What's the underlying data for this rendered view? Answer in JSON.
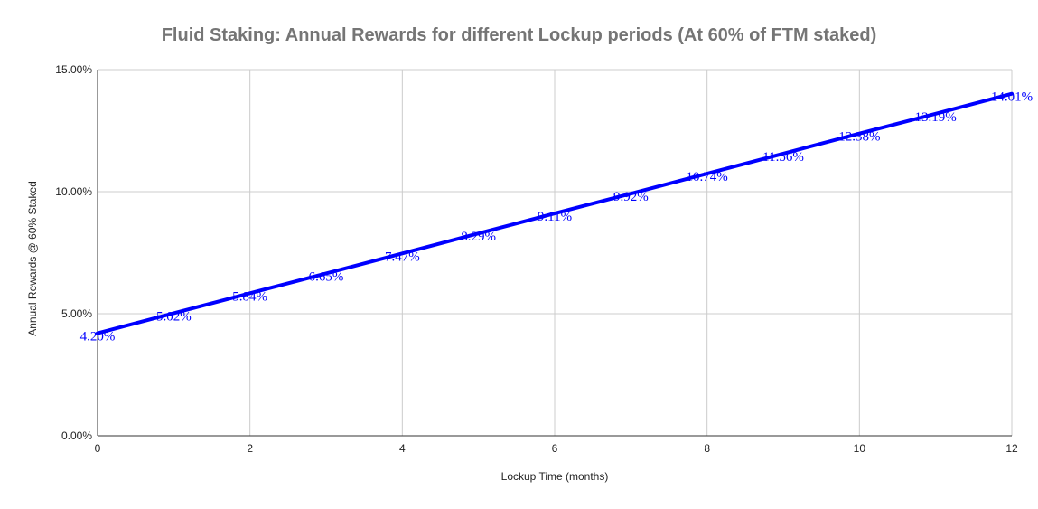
{
  "chart_data": {
    "type": "line",
    "title": "Fluid Staking: Annual Rewards for different Lockup periods (At 60% of FTM staked)",
    "xlabel": "Lockup Time (months)",
    "ylabel": "Annual Rewards @ 60% Staked",
    "x": [
      0,
      1,
      2,
      3,
      4,
      5,
      6,
      7,
      8,
      9,
      10,
      11,
      12
    ],
    "series": [
      {
        "values": [
          4.2,
          5.02,
          5.84,
          6.65,
          7.47,
          8.29,
          9.11,
          9.92,
          10.74,
          11.56,
          12.38,
          13.19,
          14.01
        ],
        "labels": [
          "4.20%",
          "5.02%",
          "5.84%",
          "6.65%",
          "7.47%",
          "8.29%",
          "9.11%",
          "9.92%",
          "10.74%",
          "11.56%",
          "12.38%",
          "13.19%",
          "14.01%"
        ],
        "color": "#0000ff"
      }
    ],
    "xlim": [
      0,
      12
    ],
    "ylim": [
      0,
      15
    ],
    "x_ticks": [
      0,
      2,
      4,
      6,
      8,
      10,
      12
    ],
    "x_tick_labels": [
      "0",
      "2",
      "4",
      "6",
      "8",
      "10",
      "12"
    ],
    "y_ticks": [
      0,
      5,
      10,
      15
    ],
    "y_tick_labels": [
      "0.00%",
      "5.00%",
      "10.00%",
      "15.00%"
    ],
    "grid": true,
    "grid_color": "#cccccc",
    "axis_color": "#333333"
  }
}
